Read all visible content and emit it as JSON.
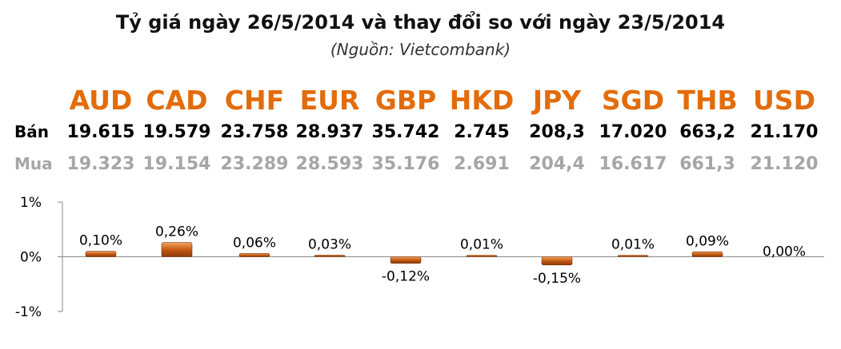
{
  "header": {
    "title": "Tỷ giá ngày 26/5/2014 và thay đổi so với ngày 23/5/2014",
    "subtitle": "(Nguồn: Vietcombank)"
  },
  "table": {
    "sell_label": "Bán",
    "buy_label": "Mua",
    "currencies": [
      "AUD",
      "CAD",
      "CHF",
      "EUR",
      "GBP",
      "HKD",
      "JPY",
      "SGD",
      "THB",
      "USD"
    ],
    "sell": [
      "19.615",
      "19.579",
      "23.758",
      "28.937",
      "35.742",
      "2.745",
      "208,3",
      "17.020",
      "663,2",
      "21.170"
    ],
    "buy": [
      "19.323",
      "19.154",
      "23.289",
      "28.593",
      "35.176",
      "2.691",
      "204,4",
      "16.617",
      "661,3",
      "21.120"
    ]
  },
  "colors": {
    "accent": "#e36c0a",
    "bar": "#c55a11",
    "buy_text": "#a6a6a6"
  },
  "chart_data": {
    "type": "bar",
    "categories": [
      "AUD",
      "CAD",
      "CHF",
      "EUR",
      "GBP",
      "HKD",
      "JPY",
      "SGD",
      "THB",
      "USD"
    ],
    "values": [
      0.1,
      0.26,
      0.06,
      0.03,
      -0.12,
      0.01,
      -0.15,
      0.01,
      0.09,
      0.0
    ],
    "data_labels": [
      "0,10%",
      "0,26%",
      "0,06%",
      "0,03%",
      "-0,12%",
      "0,01%",
      "-0,15%",
      "0,01%",
      "0,09%",
      "0,00%"
    ],
    "ylim": [
      -1,
      1
    ],
    "yticks": [
      1,
      0,
      -1
    ],
    "ytick_labels": [
      "1%",
      "0%",
      "-1%"
    ],
    "grid": false,
    "legend": "none"
  }
}
